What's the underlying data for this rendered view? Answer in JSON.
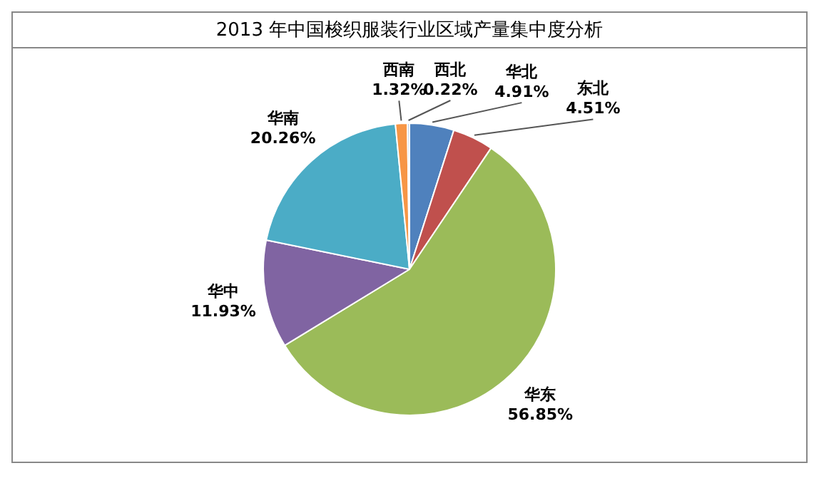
{
  "chart_data": {
    "type": "pie",
    "title": "2013 年中国梭织服装行业区域产量集中度分析",
    "categories": [
      "华北",
      "东北",
      "华东",
      "华中",
      "华南",
      "西南",
      "西北"
    ],
    "values": [
      4.91,
      4.51,
      56.85,
      11.93,
      20.26,
      1.32,
      0.22
    ],
    "value_labels": [
      "4.91%",
      "4.51%",
      "56.85%",
      "11.93%",
      "20.26%",
      "1.32%",
      "0.22%"
    ],
    "colors": [
      "#4f81bd",
      "#c0504d",
      "#9bbb59",
      "#8064a2",
      "#4bacc6",
      "#f79646",
      "#a9c4e4"
    ],
    "legend": false
  }
}
